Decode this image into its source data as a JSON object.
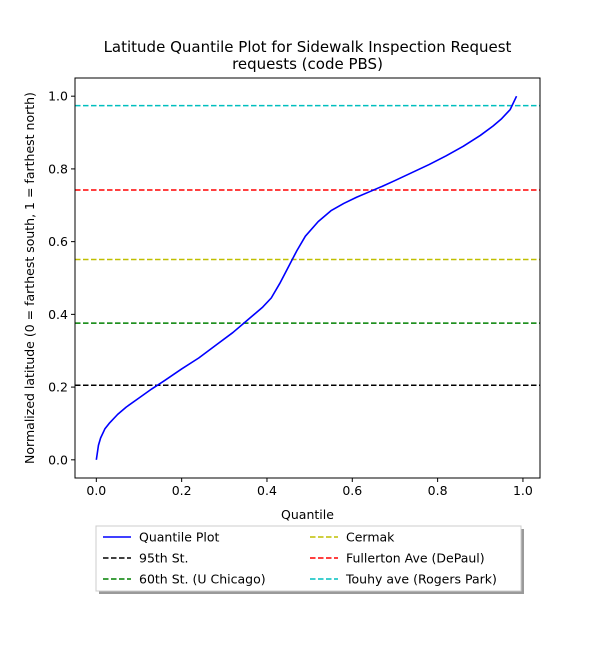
{
  "chart_data": {
    "type": "line",
    "title_lines": [
      "Latitude Quantile Plot for Sidewalk Inspection Request",
      "requests (code PBS)"
    ],
    "xlabel": "Quantile",
    "ylabel": "Normalized latitude (0 = farthest south, 1 = farthest north)",
    "xlim": [
      -0.05,
      1.04
    ],
    "ylim": [
      -0.05,
      1.05
    ],
    "x_ticks": [
      0.0,
      0.2,
      0.4,
      0.6,
      0.8,
      1.0
    ],
    "x_tick_labels": [
      "0.0",
      "0.2",
      "0.4",
      "0.6",
      "0.8",
      "1.0"
    ],
    "y_ticks": [
      0.0,
      0.2,
      0.4,
      0.6,
      0.8,
      1.0
    ],
    "y_tick_labels": [
      "0.0",
      "0.2",
      "0.4",
      "0.6",
      "0.8",
      "1.0"
    ],
    "grid": false,
    "legend_placement": "below the plot, two columns",
    "series": [
      {
        "name": "Quantile Plot",
        "color": "#0000ff",
        "style": "solid",
        "x": [
          0.0,
          0.005,
          0.01,
          0.02,
          0.03,
          0.05,
          0.07,
          0.1,
          0.13,
          0.16,
          0.2,
          0.24,
          0.28,
          0.32,
          0.36,
          0.39,
          0.41,
          0.43,
          0.45,
          0.47,
          0.49,
          0.52,
          0.55,
          0.58,
          0.61,
          0.64,
          0.67,
          0.7,
          0.74,
          0.78,
          0.82,
          0.86,
          0.9,
          0.93,
          0.95,
          0.97,
          0.985
        ],
        "y": [
          0.0,
          0.04,
          0.06,
          0.085,
          0.1,
          0.125,
          0.145,
          0.17,
          0.195,
          0.218,
          0.25,
          0.28,
          0.315,
          0.35,
          0.39,
          0.42,
          0.445,
          0.485,
          0.53,
          0.575,
          0.615,
          0.655,
          0.685,
          0.705,
          0.722,
          0.737,
          0.752,
          0.768,
          0.79,
          0.812,
          0.836,
          0.862,
          0.892,
          0.918,
          0.938,
          0.963,
          1.0
        ]
      },
      {
        "name": "95th St.",
        "color": "#000000",
        "style": "dashed",
        "y_const": 0.205
      },
      {
        "name": "60th St. (U Chicago)",
        "color": "#008000",
        "style": "dashed",
        "y_const": 0.376
      },
      {
        "name": "Cermak",
        "color": "#bfbf00",
        "style": "dashed",
        "y_const": 0.551
      },
      {
        "name": "Fullerton Ave (DePaul)",
        "color": "#ff0000",
        "style": "dashed",
        "y_const": 0.742
      },
      {
        "name": "Touhy ave (Rogers Park)",
        "color": "#00bfbf",
        "style": "dashed",
        "y_const": 0.974
      }
    ]
  }
}
